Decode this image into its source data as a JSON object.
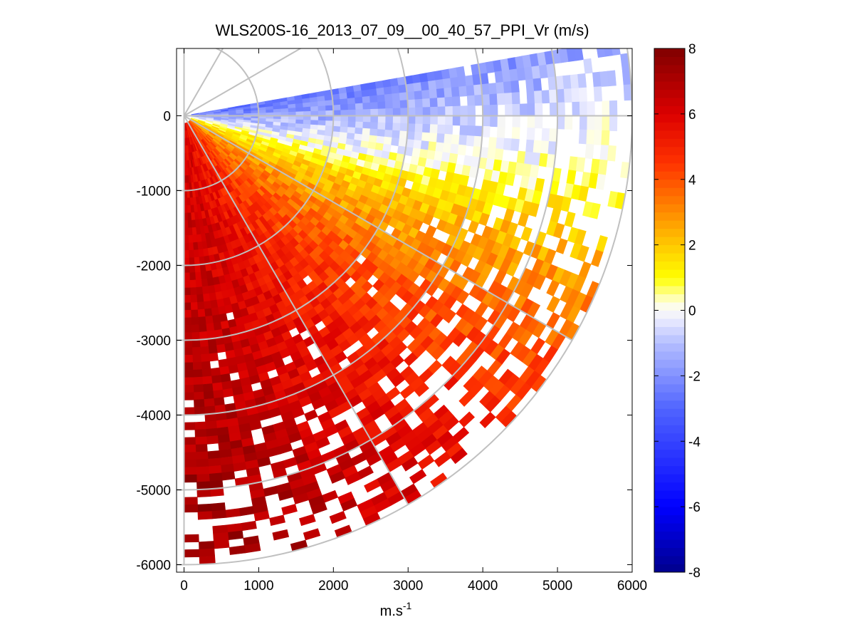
{
  "chart_data": {
    "type": "heatmap",
    "subtype": "polar-ppi",
    "title": "WLS200S-16_2013_07_09__00_40_57_PPI_Vr (m/s)",
    "xlabel_base": "m.s",
    "xlabel_exp": "-1",
    "ylabel": "",
    "xlim": [
      -100,
      6000
    ],
    "ylim": [
      -6100,
      900
    ],
    "xticks": [
      0,
      1000,
      2000,
      3000,
      4000,
      5000,
      6000
    ],
    "xtick_labels": [
      "0",
      "1000",
      "2000",
      "3000",
      "4000",
      "5000",
      "6000"
    ],
    "yticks": [
      0,
      -1000,
      -2000,
      -3000,
      -4000,
      -5000,
      -6000
    ],
    "ytick_labels": [
      "0",
      "-1000",
      "-2000",
      "-3000",
      "-4000",
      "-5000",
      "-6000"
    ],
    "colorbar": {
      "range": [
        -8,
        8
      ],
      "ticks": [
        8,
        6,
        4,
        2,
        0,
        -2,
        -4,
        -6,
        -8
      ],
      "tick_labels": [
        "8",
        "6",
        "4",
        "2",
        "0",
        "-2",
        "-4",
        "-6",
        "-8"
      ],
      "unit": "m/s",
      "colormap": "blue-white-yellow-red-darkred"
    },
    "sector": {
      "azimuth_start_deg": -90,
      "azimuth_end_deg": 10,
      "max_range_m": 6000,
      "range_gate_m": 100,
      "azimuth_step_deg": 2
    },
    "grid": {
      "on": true,
      "ring_radii_m": [
        1000,
        2000,
        3000,
        4000,
        5000,
        6000
      ],
      "spoke_angles_deg": [
        0,
        30,
        60,
        90,
        -30,
        -60,
        -90
      ],
      "color": "#c0c0c0"
    },
    "velocity_pattern": [
      {
        "azimuth_deg": 10,
        "vr_ms": -3.0
      },
      {
        "azimuth_deg": 0,
        "vr_ms": -1.8
      },
      {
        "azimuth_deg": -10,
        "vr_ms": -0.6
      },
      {
        "azimuth_deg": -20,
        "vr_ms": 1.2
      },
      {
        "azimuth_deg": -35,
        "vr_ms": 2.8
      },
      {
        "azimuth_deg": -50,
        "vr_ms": 4.0
      },
      {
        "azimuth_deg": -65,
        "vr_ms": 5.0
      },
      {
        "azimuth_deg": -80,
        "vr_ms": 5.8
      },
      {
        "azimuth_deg": -90,
        "vr_ms": 6.0
      }
    ],
    "range_increase_ms_per_km": 0.25
  }
}
